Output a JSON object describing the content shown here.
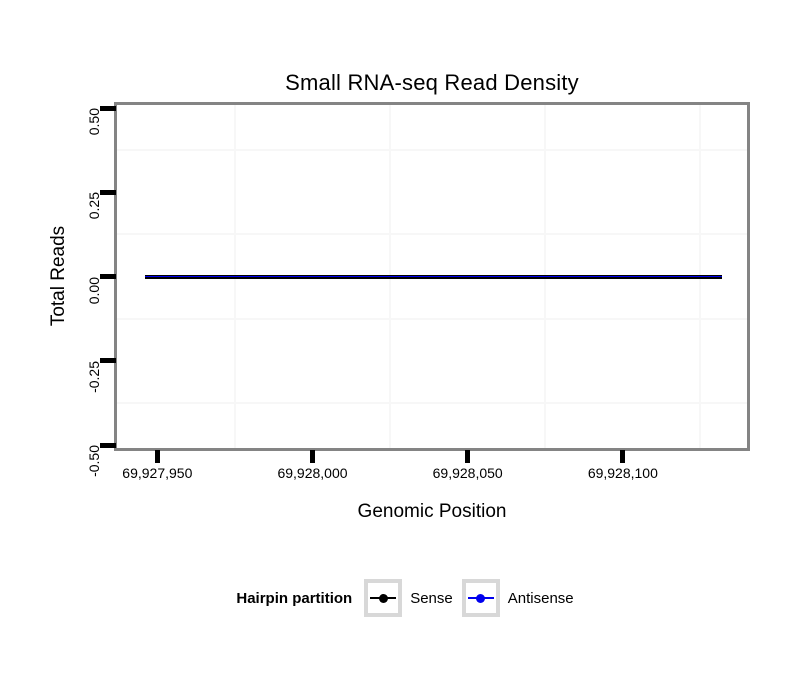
{
  "chart_data": {
    "type": "line",
    "title": "Small RNA-seq Read Density",
    "xlabel": "Genomic Position",
    "ylabel": "Total Reads",
    "x_axis": {
      "tick_values": [
        69927950,
        69928000,
        69928050,
        69928100
      ],
      "tick_labels": [
        "69,927,950",
        "69,928,000",
        "69,928,050",
        "69,928,100"
      ],
      "xlim": [
        69927937,
        69928140
      ]
    },
    "y_axis": {
      "tick_values": [
        0.5,
        0.25,
        0.0,
        -0.25,
        -0.5
      ],
      "tick_labels": [
        "0.50",
        "0.25",
        "0.00",
        "-0.25",
        "-0.50"
      ],
      "ylim": [
        -0.5,
        0.5
      ]
    },
    "grid": {
      "major": "none",
      "minor": "faint"
    },
    "series": [
      {
        "name": "Sense",
        "color": "#000000",
        "x": [
          69927946,
          69928132
        ],
        "values": [
          0,
          0
        ]
      },
      {
        "name": "Antisense",
        "color": "#0000EE",
        "x": [
          69927946,
          69928132
        ],
        "values": [
          0,
          0
        ]
      }
    ],
    "legend": {
      "title": "Hairpin partition",
      "position": "bottom",
      "entries": [
        {
          "label": "Sense",
          "color": "#000000"
        },
        {
          "label": "Antisense",
          "color": "#0000EE"
        }
      ]
    }
  },
  "colors": {
    "background": "#FFFFFF",
    "panel_border": "#848484",
    "tick": "#000000",
    "minor_grid": "#F7F7F7",
    "legend_key_border": "#D8D8D8"
  }
}
